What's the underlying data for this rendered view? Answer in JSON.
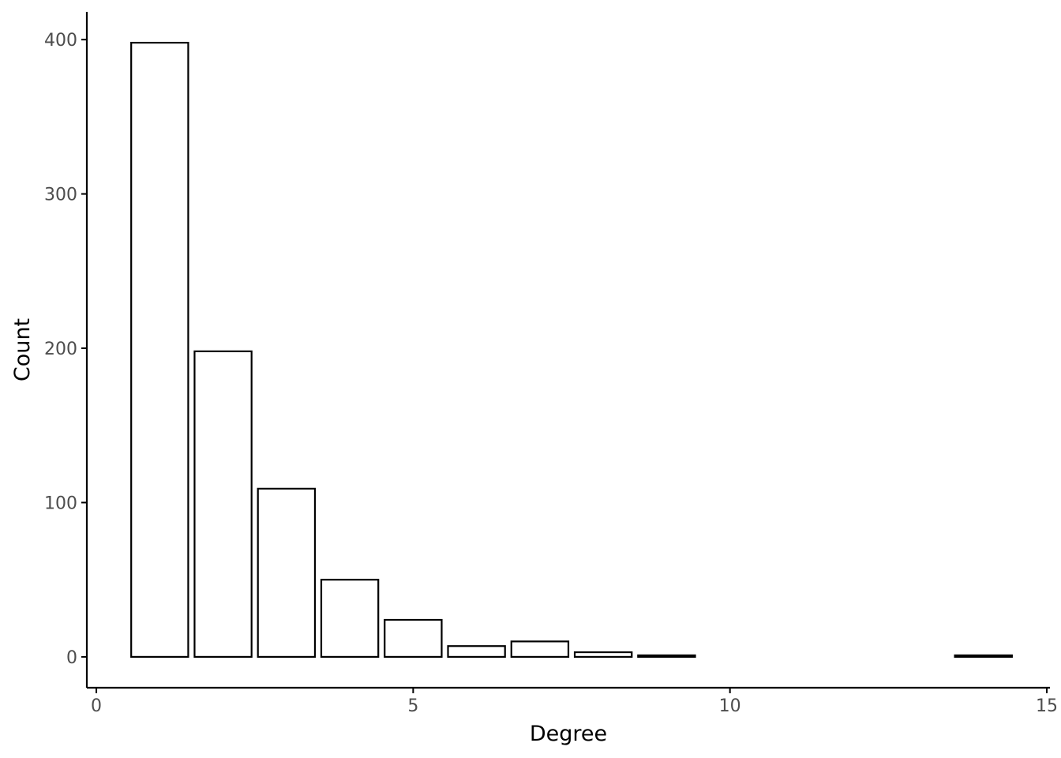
{
  "chart_data": {
    "type": "bar",
    "title": "",
    "xlabel": "Degree",
    "ylabel": "Count",
    "x": [
      1,
      2,
      3,
      4,
      5,
      6,
      7,
      8,
      9,
      14
    ],
    "values": [
      398,
      198,
      109,
      50,
      24,
      7,
      10,
      3,
      1,
      1
    ],
    "xlim": [
      -0.15,
      15.05
    ],
    "ylim": [
      -20,
      418
    ],
    "x_ticks": [
      0,
      5,
      10,
      15
    ],
    "x_tick_labels": [
      "0",
      "5",
      "10",
      "15"
    ],
    "y_ticks": [
      0,
      100,
      200,
      300,
      400
    ],
    "y_tick_labels": [
      "0",
      "100",
      "200",
      "300",
      "400"
    ],
    "bar_fill": "#ffffff",
    "bar_stroke": "#000000",
    "grid": false,
    "legend": "none"
  }
}
